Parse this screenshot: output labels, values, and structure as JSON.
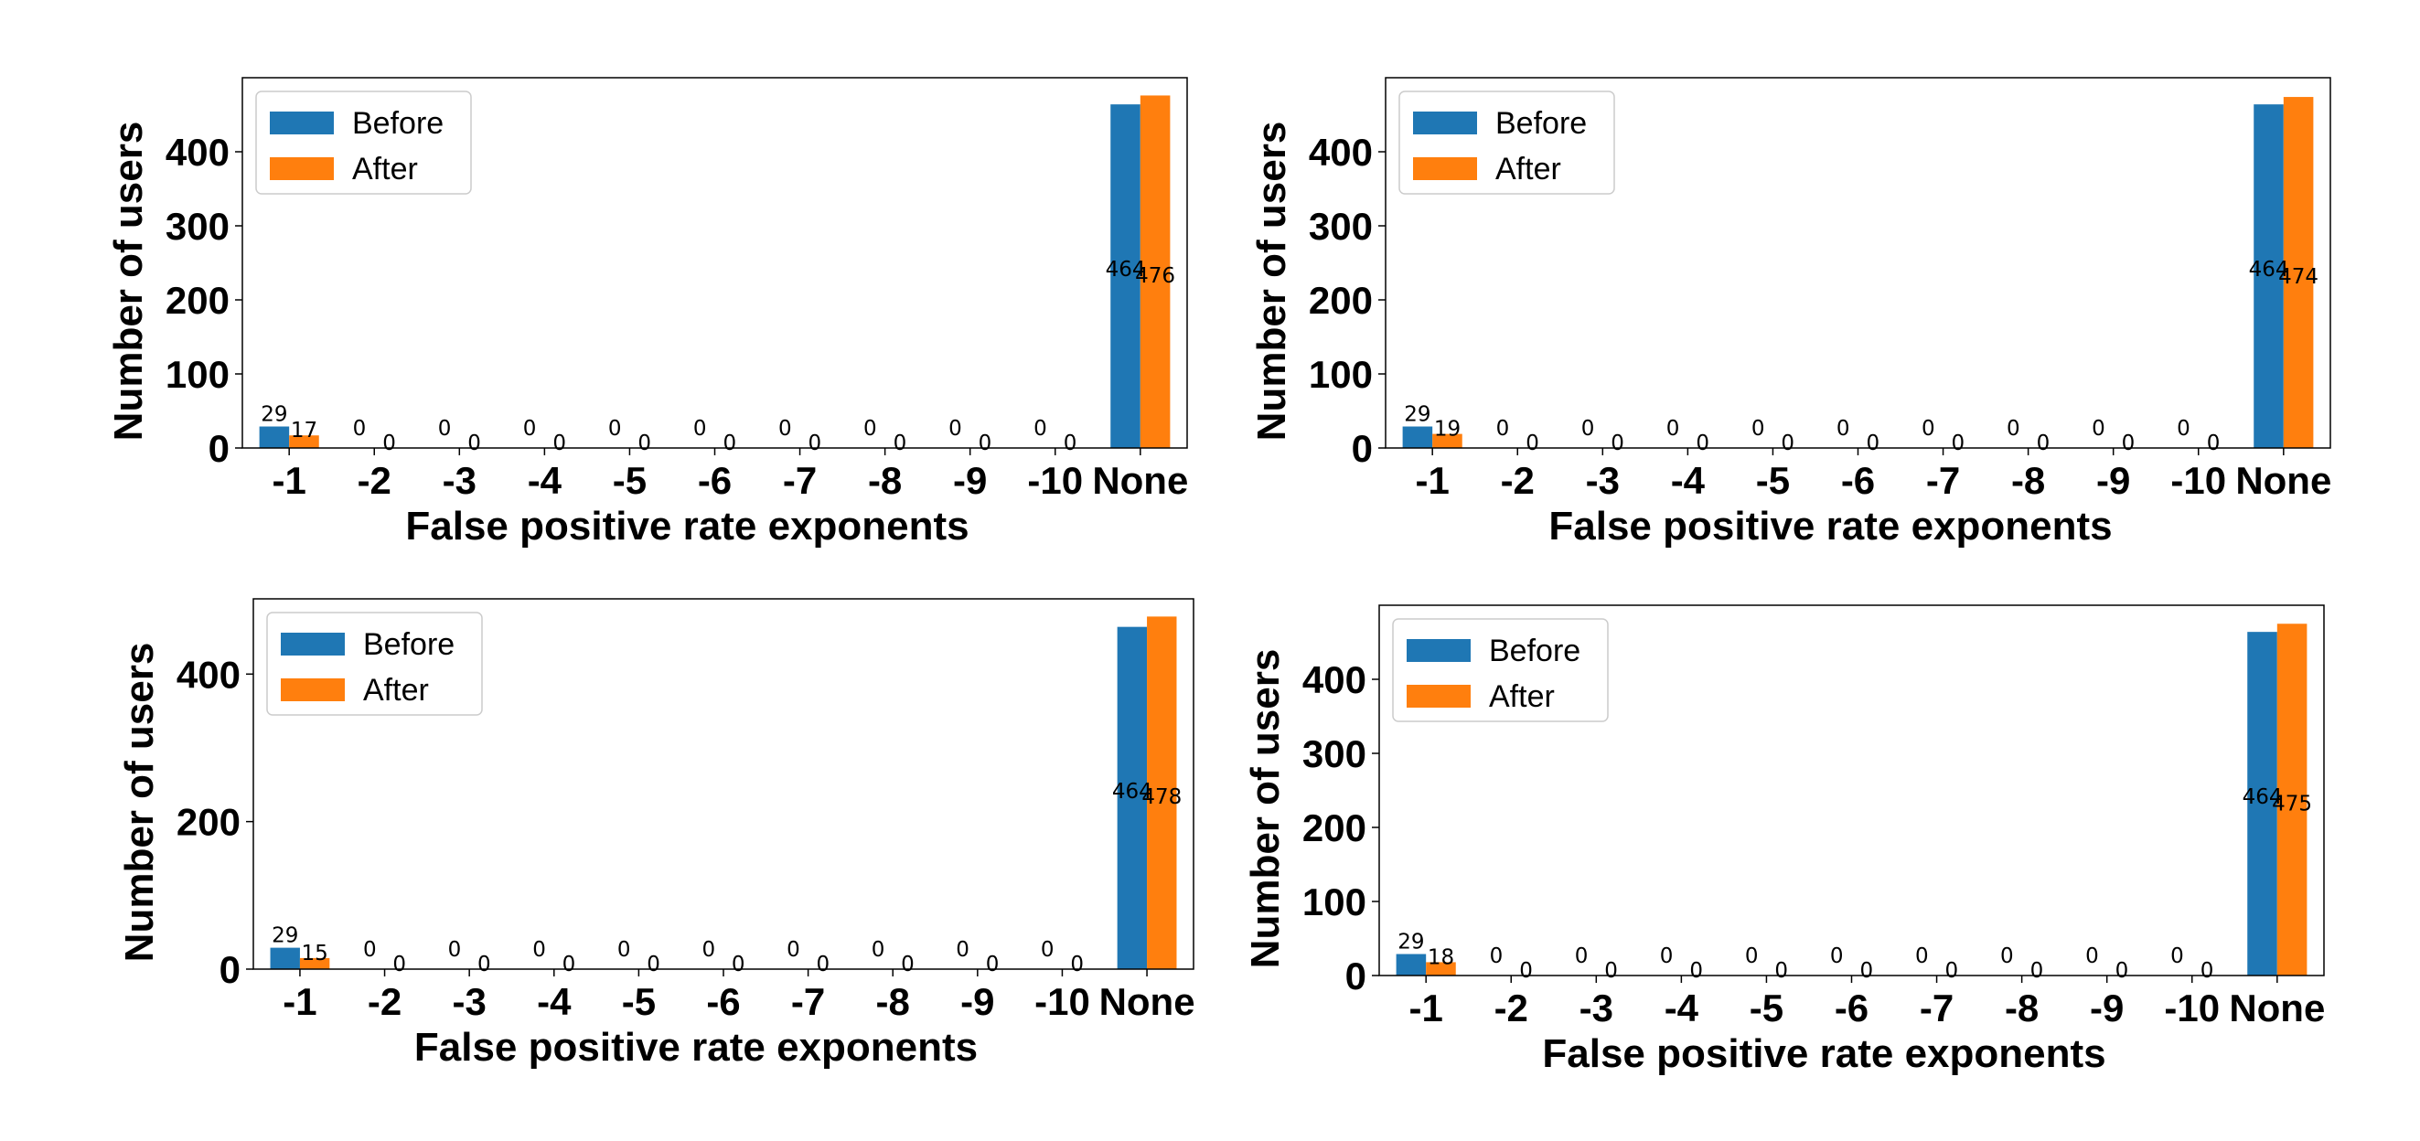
{
  "colors": {
    "before": "#1f77b4",
    "after": "#ff7f0e"
  },
  "chart_data": [
    {
      "type": "bar",
      "categories": [
        "-1",
        "-2",
        "-3",
        "-4",
        "-5",
        "-6",
        "-7",
        "-8",
        "-9",
        "-10",
        "None"
      ],
      "series": [
        {
          "name": "Before",
          "values": [
            29,
            0,
            0,
            0,
            0,
            0,
            0,
            0,
            0,
            0,
            464
          ]
        },
        {
          "name": "After",
          "values": [
            17,
            0,
            0,
            0,
            0,
            0,
            0,
            0,
            0,
            0,
            476
          ]
        }
      ],
      "xlabel": "False positive rate exponents",
      "ylabel": "Number of users",
      "yticks": [
        0,
        100,
        200,
        300,
        400
      ],
      "ylim": [
        0,
        500
      ],
      "legend": "top-left",
      "grid": false
    },
    {
      "type": "bar",
      "categories": [
        "-1",
        "-2",
        "-3",
        "-4",
        "-5",
        "-6",
        "-7",
        "-8",
        "-9",
        "-10",
        "None"
      ],
      "series": [
        {
          "name": "Before",
          "values": [
            29,
            0,
            0,
            0,
            0,
            0,
            0,
            0,
            0,
            0,
            464
          ]
        },
        {
          "name": "After",
          "values": [
            19,
            0,
            0,
            0,
            0,
            0,
            0,
            0,
            0,
            0,
            474
          ]
        }
      ],
      "xlabel": "False positive rate exponents",
      "ylabel": "Number of users",
      "yticks": [
        0,
        100,
        200,
        300,
        400
      ],
      "ylim": [
        0,
        500
      ],
      "legend": "top-left",
      "grid": false
    },
    {
      "type": "bar",
      "categories": [
        "-1",
        "-2",
        "-3",
        "-4",
        "-5",
        "-6",
        "-7",
        "-8",
        "-9",
        "-10",
        "None"
      ],
      "series": [
        {
          "name": "Before",
          "values": [
            29,
            0,
            0,
            0,
            0,
            0,
            0,
            0,
            0,
            0,
            464
          ]
        },
        {
          "name": "After",
          "values": [
            15,
            0,
            0,
            0,
            0,
            0,
            0,
            0,
            0,
            0,
            478
          ]
        }
      ],
      "xlabel": "False positive rate exponents",
      "ylabel": "Number of users",
      "yticks": [
        0,
        200,
        400
      ],
      "ylim": [
        0,
        502
      ],
      "legend": "top-left",
      "grid": false
    },
    {
      "type": "bar",
      "categories": [
        "-1",
        "-2",
        "-3",
        "-4",
        "-5",
        "-6",
        "-7",
        "-8",
        "-9",
        "-10",
        "None"
      ],
      "series": [
        {
          "name": "Before",
          "values": [
            29,
            0,
            0,
            0,
            0,
            0,
            0,
            0,
            0,
            0,
            464
          ]
        },
        {
          "name": "After",
          "values": [
            18,
            0,
            0,
            0,
            0,
            0,
            0,
            0,
            0,
            0,
            475
          ]
        }
      ],
      "xlabel": "False positive rate exponents",
      "ylabel": "Number of users",
      "yticks": [
        0,
        100,
        200,
        300,
        400
      ],
      "ylim": [
        0,
        500
      ],
      "legend": "top-left",
      "grid": false
    }
  ]
}
